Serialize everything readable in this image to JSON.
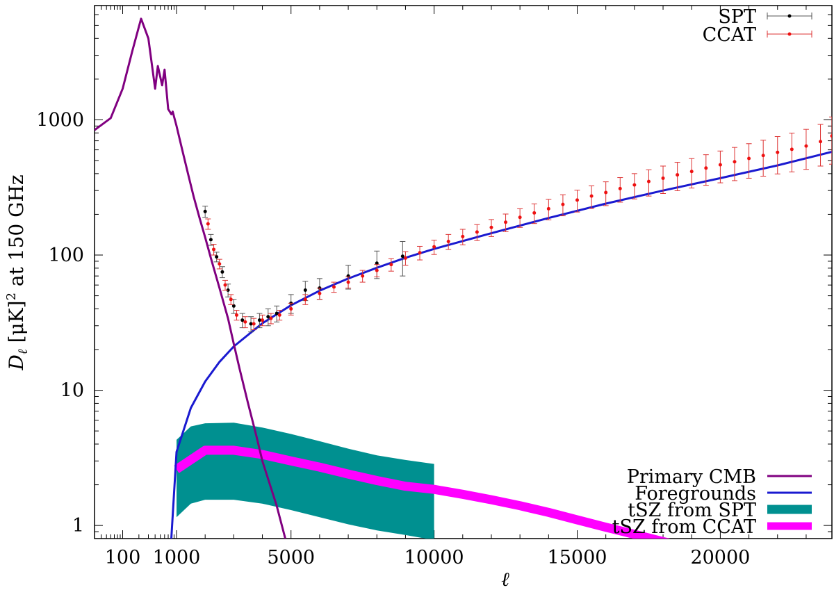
{
  "chart_data": {
    "type": "line",
    "title": "",
    "xlabel": "ℓ",
    "ylabel": "D_ℓ [μK]² at 150 GHz",
    "ylabel_parts": {
      "symbol": "D",
      "subscript": "ℓ",
      "rest_pre": " [μK]",
      "sup": "2",
      "rest_post": " at 150 GHz"
    },
    "x_axis": {
      "scale": "log for ℓ < 1000, linear above",
      "range": [
        30,
        23900
      ],
      "ticks": [
        {
          "value": 100,
          "label": "100"
        },
        {
          "value": 1000,
          "label": "1000"
        },
        {
          "value": 5000,
          "label": "5000"
        },
        {
          "value": 10000,
          "label": "10000"
        },
        {
          "value": 15000,
          "label": "15000"
        },
        {
          "value": 20000,
          "label": "20000"
        }
      ]
    },
    "y_axis": {
      "scale": "log",
      "range": [
        0.8,
        7000
      ],
      "ticks": [
        {
          "value": 1,
          "label": "1"
        },
        {
          "value": 10,
          "label": "10"
        },
        {
          "value": 100,
          "label": "100"
        },
        {
          "value": 1000,
          "label": "1000"
        }
      ]
    },
    "grid": false,
    "legend_top": {
      "placement": "top-right",
      "entries": [
        "SPT",
        "CCAT"
      ]
    },
    "legend_bottom": {
      "placement": "bottom-right",
      "entries": [
        "Primary CMB",
        "Foregrounds",
        "tSZ from SPT",
        "tSZ from CCAT"
      ]
    },
    "colors": {
      "primary_cmb": "#800080",
      "foregrounds": "#1a1ad0",
      "tsz_spt": "#009090",
      "tsz_ccat": "#ff00ff",
      "spt": "#000000",
      "ccat": "#ee1111",
      "ccat_errorbar": "#dd3333",
      "spt_errorbar": "#555555"
    },
    "series": [
      {
        "name": "Primary CMB",
        "kind": "line",
        "x": [
          30,
          60,
          100,
          150,
          220,
          300,
          400,
          450,
          540,
          600,
          700,
          800,
          850,
          1000,
          1200,
          1400,
          1600,
          1800,
          2000,
          2200,
          2500,
          2800,
          3000,
          3200,
          3500,
          3800,
          4000,
          4500,
          4800
        ],
        "y": [
          840,
          1030,
          1700,
          3200,
          5600,
          4000,
          1700,
          2500,
          1800,
          2350,
          1200,
          1100,
          1150,
          900,
          600,
          400,
          270,
          190,
          135,
          95,
          57,
          34,
          22,
          14.5,
          8,
          4.5,
          3.0,
          1.4,
          0.8
        ]
      },
      {
        "name": "Foregrounds",
        "kind": "line",
        "x": [
          800,
          1000,
          1500,
          2000,
          2500,
          3000,
          4000,
          5000,
          6000,
          7000,
          8000,
          9000,
          10000,
          12000,
          14000,
          16000,
          18000,
          20000,
          22000,
          23900
        ],
        "y": [
          0.8,
          3.5,
          7.4,
          11.6,
          16.2,
          21.1,
          31.3,
          42.5,
          54.5,
          67.0,
          80.5,
          95.5,
          111,
          145,
          188,
          240,
          300,
          370,
          460,
          580
        ]
      },
      {
        "name": "tSZ from SPT",
        "kind": "band",
        "x": [
          1000,
          1500,
          2000,
          3000,
          4000,
          5000,
          6000,
          7000,
          8000,
          9000,
          10000
        ],
        "y_low": [
          1.15,
          1.45,
          1.55,
          1.55,
          1.45,
          1.3,
          1.15,
          1.02,
          0.92,
          0.85,
          0.78
        ],
        "y_high": [
          4.3,
          5.4,
          5.7,
          5.75,
          5.3,
          4.75,
          4.2,
          3.7,
          3.3,
          3.05,
          2.85
        ]
      },
      {
        "name": "tSZ from CCAT",
        "kind": "band",
        "x": [
          1000,
          2000,
          3000,
          4000,
          5000,
          6000,
          7000,
          8000,
          9000,
          10000,
          11000,
          12000,
          13000,
          14000,
          15000,
          16000,
          17000,
          18000,
          19000
        ],
        "y": [
          2.6,
          3.6,
          3.6,
          3.35,
          3.0,
          2.7,
          2.4,
          2.15,
          1.95,
          1.85,
          1.7,
          1.55,
          1.4,
          1.25,
          1.1,
          0.97,
          0.86,
          0.76,
          0.68
        ]
      },
      {
        "name": "SPT",
        "kind": "errorbar",
        "x": [
          2000,
          2200,
          2400,
          2600,
          2800,
          3000,
          3300,
          3600,
          3900,
          4200,
          4500,
          5000,
          5500,
          6000,
          7000,
          8000,
          8900
        ],
        "y": [
          210,
          130,
          97,
          75,
          55,
          42,
          33,
          31,
          33,
          35,
          37,
          44,
          55,
          57,
          70,
          87,
          98
        ],
        "err": [
          20,
          12,
          8,
          7,
          6,
          5,
          4,
          4,
          4,
          5,
          5,
          7,
          9,
          10,
          14,
          20,
          28
        ]
      },
      {
        "name": "CCAT",
        "kind": "errorbar",
        "x": [
          2100,
          2300,
          2500,
          2700,
          2900,
          3100,
          3400,
          3700,
          4000,
          4300,
          4600,
          5000,
          5500,
          6000,
          6500,
          7000,
          7500,
          8000,
          8500,
          9000,
          9500,
          10000,
          10500,
          11000,
          11500,
          12000,
          12500,
          13000,
          13500,
          14000,
          14500,
          15000,
          15500,
          16000,
          16500,
          17000,
          17500,
          18000,
          18500,
          19000,
          19500,
          20000,
          20500,
          21000,
          21500,
          22000,
          22500,
          23000,
          23500,
          23900
        ],
        "y": [
          170,
          110,
          86,
          60,
          47,
          36,
          32,
          31,
          33,
          34,
          36,
          40,
          47,
          52,
          58,
          63,
          70,
          77,
          85,
          95,
          104,
          115,
          126,
          137,
          148,
          160,
          175,
          190,
          205,
          220,
          237,
          255,
          273,
          290,
          310,
          330,
          350,
          370,
          392,
          415,
          440,
          465,
          490,
          518,
          545,
          575,
          605,
          640,
          690,
          760
        ],
        "err": [
          15,
          10,
          7,
          5,
          4,
          3,
          3,
          3,
          3,
          3,
          3,
          4,
          4,
          5,
          5,
          6,
          7,
          8,
          9,
          11,
          12,
          14,
          16,
          18,
          20,
          23,
          26,
          30,
          34,
          38,
          42,
          47,
          52,
          58,
          64,
          70,
          77,
          85,
          93,
          102,
          112,
          123,
          135,
          148,
          162,
          177,
          193,
          210,
          235,
          290
        ]
      }
    ]
  }
}
